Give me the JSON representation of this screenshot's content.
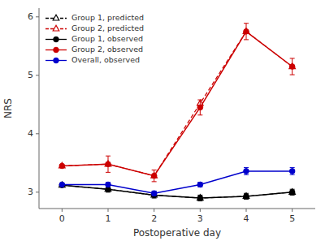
{
  "chart_data": {
    "type": "line",
    "x": [
      0,
      1,
      2,
      3,
      4,
      5
    ],
    "xlabel": "Postoperative day",
    "ylabel": "NRS",
    "xlim": [
      -0.5,
      5.5
    ],
    "xticks": [
      0,
      1,
      2,
      3,
      4,
      5
    ],
    "ylim": [
      2.72,
      6.15
    ],
    "yticks": [
      3,
      4,
      5,
      6
    ],
    "grid": false,
    "legend": "upper left",
    "series": [
      {
        "name": "Group 1, predicted",
        "color": "#000000",
        "line_style": "dashed",
        "marker": "open-triangle",
        "values": [
          3.12,
          3.05,
          2.95,
          2.9,
          2.93,
          3.0
        ]
      },
      {
        "name": "Group 2, predicted",
        "color": "#cc0000",
        "line_style": "dashed",
        "marker": "open-triangle",
        "values": [
          3.45,
          3.48,
          3.28,
          4.52,
          5.75,
          5.15
        ]
      },
      {
        "name": "Group 1, observed",
        "color": "#000000",
        "line_style": "solid",
        "marker": "circle",
        "values": [
          3.12,
          3.05,
          2.95,
          2.9,
          2.93,
          3.0
        ],
        "errors": [
          0.0,
          0.05,
          0.05,
          0.05,
          0.05,
          0.05
        ]
      },
      {
        "name": "Group 2, observed",
        "color": "#cc0000",
        "line_style": "solid",
        "marker": "circle",
        "values": [
          3.45,
          3.48,
          3.28,
          4.45,
          5.75,
          5.15
        ],
        "errors": [
          0.0,
          0.14,
          0.1,
          0.13,
          0.14,
          0.14
        ]
      },
      {
        "name": "Overall, observed",
        "color": "#0000cc",
        "line_style": "solid",
        "marker": "circle",
        "values": [
          3.13,
          3.13,
          2.98,
          3.13,
          3.36,
          3.36
        ],
        "errors": [
          0.0,
          0.04,
          0.04,
          0.04,
          0.06,
          0.06
        ]
      }
    ]
  }
}
